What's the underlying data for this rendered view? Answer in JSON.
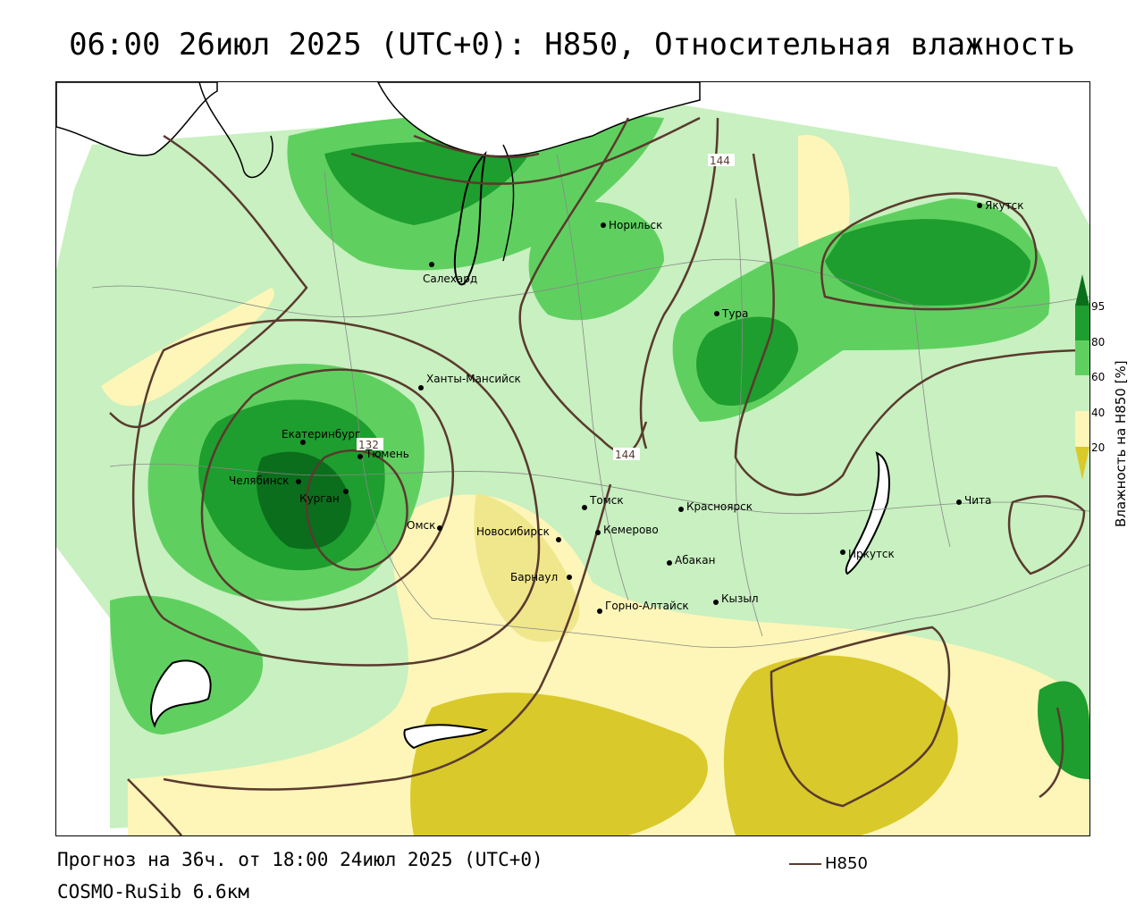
{
  "title": "06:00 26июл 2025 (UTC+0): H850, Относительная влажность",
  "footer": {
    "forecast": "Прогноз на 36ч. от 18:00 24июл 2025 (UTC+0)",
    "model": "COSMO-RuSib 6.6км",
    "line_legend": "H850"
  },
  "colorbar": {
    "title": "Влажность на H850 [%]",
    "ticks": [
      "95",
      "80",
      "60",
      "40",
      "20"
    ],
    "colors": {
      "very_dry": "#d9c92a",
      "dry": "#f0e68c",
      "mid_dry": "#fdf6b8",
      "neutral": "#ffffff",
      "moist": "#c8f0c0",
      "wet": "#5fd060",
      "very_wet": "#1e9e2e",
      "saturated": "#0b6e1c"
    }
  },
  "contour_labels": [
    "144",
    "144",
    "132"
  ],
  "cities": [
    "Якутск",
    "Норильск",
    "Салехард",
    "Тура",
    "Ханты-Мансийск",
    "Екатеринбург",
    "Тюмень",
    "Челябинск",
    "Курган",
    "Омск",
    "Новосибирск",
    "Томск",
    "Кемерово",
    "Красноярск",
    "Барнаул",
    "Абакан",
    "Горно-Алтайск",
    "Кызыл",
    "Иркутск",
    "Чита"
  ],
  "colors": {
    "contour": "#5a3a2e",
    "border": "#888888",
    "coast": "#000000"
  }
}
